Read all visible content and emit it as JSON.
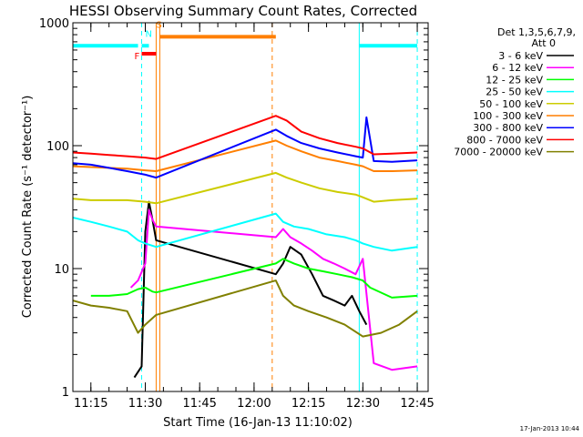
{
  "chart_data": {
    "type": "line",
    "title": "HESSI Observing Summary Count Rates, Corrected",
    "xlabel": "Start Time (16-Jan-13 11:10:02)",
    "ylabel": "Corrected Count Rate (s⁻¹ detector⁻¹)",
    "y_scale": "log",
    "ylim": [
      1,
      1000
    ],
    "xlim": [
      "11:10:02",
      "12:48:00"
    ],
    "x_ticks": [
      "11:15",
      "11:30",
      "11:45",
      "12:00",
      "12:15",
      "12:30",
      "12:45"
    ],
    "y_ticks": [
      "1",
      "10",
      "100",
      "1000"
    ],
    "grid": false,
    "legend": {
      "placement": "right",
      "header": [
        "Det 1,3,5,6,7,9,",
        "Att 0"
      ],
      "entries": [
        "3 - 6 keV",
        "6 - 12 keV",
        "12 - 25 keV",
        "25 - 50 keV",
        "50 - 100 keV",
        "100 - 300 keV",
        "300 - 800 keV",
        "800 - 7000 keV",
        "7000 - 20000 keV"
      ]
    },
    "series": [
      {
        "name": "3 - 6 keV",
        "color": "#000000",
        "x": [
          "11:27",
          "11:29",
          "11:30",
          "11:31",
          "11:32",
          "11:33",
          "12:06",
          "12:08",
          "12:10",
          "12:13",
          "12:16",
          "12:19",
          "12:22",
          "12:25",
          "12:27",
          "12:29",
          "12:31"
        ],
        "y": [
          1.3,
          1.6,
          20,
          35,
          25,
          17,
          9,
          11,
          15,
          13,
          9,
          6,
          5.5,
          5,
          6,
          4.5,
          3.5
        ]
      },
      {
        "name": "6 - 12 keV",
        "color": "#ff00ff",
        "x": [
          "11:26",
          "11:28",
          "11:30",
          "11:31",
          "11:32",
          "11:33",
          "12:06",
          "12:08",
          "12:10",
          "12:13",
          "12:16",
          "12:19",
          "12:22",
          "12:25",
          "12:28",
          "12:30",
          "12:33",
          "12:38",
          "12:45"
        ],
        "y": [
          7,
          8,
          11,
          30,
          25,
          22,
          18,
          21,
          18,
          16,
          14,
          12,
          11,
          10,
          9,
          12,
          1.7,
          1.5,
          1.6
        ]
      },
      {
        "name": "12 - 25 keV",
        "color": "#00ff00",
        "x": [
          "11:15",
          "11:20",
          "11:25",
          "11:28",
          "11:30",
          "11:32",
          "11:33",
          "12:06",
          "12:08",
          "12:11",
          "12:15",
          "12:19",
          "12:23",
          "12:27",
          "12:30",
          "12:32",
          "12:38",
          "12:45"
        ],
        "y": [
          6,
          6,
          6.2,
          6.8,
          7,
          6.5,
          6.4,
          11,
          12,
          11,
          10,
          9.5,
          9,
          8.5,
          8,
          7,
          5.8,
          6
        ]
      },
      {
        "name": "25 - 50 keV",
        "color": "#00ffff",
        "x": [
          "11:10",
          "11:15",
          "11:20",
          "11:25",
          "11:28",
          "11:30",
          "11:33",
          "12:06",
          "12:08",
          "12:11",
          "12:15",
          "12:20",
          "12:25",
          "12:28",
          "12:30",
          "12:33",
          "12:38",
          "12:45"
        ],
        "y": [
          26,
          24,
          22,
          20,
          17,
          16,
          15,
          28,
          24,
          22,
          21,
          19,
          18,
          17,
          16,
          15,
          14,
          15
        ]
      },
      {
        "name": "50 - 100 keV",
        "color": "#cccc00",
        "x": [
          "11:10",
          "11:15",
          "11:20",
          "11:25",
          "11:30",
          "11:33",
          "12:06",
          "12:09",
          "12:13",
          "12:18",
          "12:23",
          "12:28",
          "12:30",
          "12:33",
          "12:38",
          "12:45"
        ],
        "y": [
          37,
          36,
          36,
          36,
          35,
          34,
          60,
          55,
          50,
          45,
          42,
          40,
          38,
          35,
          36,
          37
        ]
      },
      {
        "name": "100 - 300 keV",
        "color": "#ff7f00",
        "x": [
          "11:10",
          "11:15",
          "11:20",
          "11:25",
          "11:30",
          "11:33",
          "12:06",
          "12:09",
          "12:13",
          "12:18",
          "12:23",
          "12:28",
          "12:30",
          "12:33",
          "12:38",
          "12:45"
        ],
        "y": [
          68,
          67,
          66,
          65,
          63,
          62,
          110,
          100,
          90,
          80,
          75,
          70,
          68,
          62,
          62,
          63
        ]
      },
      {
        "name": "300 - 800 keV",
        "color": "#0000ff",
        "x": [
          "11:10",
          "11:15",
          "11:20",
          "11:25",
          "11:30",
          "11:33",
          "12:06",
          "12:09",
          "12:13",
          "12:18",
          "12:23",
          "12:28",
          "12:30",
          "12:31",
          "12:33",
          "12:38",
          "12:45"
        ],
        "y": [
          72,
          70,
          66,
          62,
          58,
          55,
          135,
          120,
          105,
          95,
          88,
          82,
          80,
          170,
          75,
          74,
          76
        ]
      },
      {
        "name": "800 - 7000 keV",
        "color": "#ff0000",
        "x": [
          "11:10",
          "11:15",
          "11:20",
          "11:25",
          "11:30",
          "11:33",
          "12:06",
          "12:09",
          "12:13",
          "12:18",
          "12:23",
          "12:28",
          "12:30",
          "12:33",
          "12:38",
          "12:45"
        ],
        "y": [
          88,
          86,
          84,
          82,
          80,
          78,
          175,
          160,
          130,
          115,
          105,
          98,
          95,
          85,
          86,
          88
        ]
      },
      {
        "name": "7000 - 20000 keV",
        "color": "#808000",
        "x": [
          "11:10",
          "11:15",
          "11:20",
          "11:25",
          "11:28",
          "11:30",
          "11:33",
          "12:06",
          "12:08",
          "12:11",
          "12:15",
          "12:20",
          "12:25",
          "12:30",
          "12:35",
          "12:40",
          "12:45"
        ],
        "y": [
          5.5,
          5,
          4.8,
          4.5,
          3,
          3.5,
          4.2,
          8,
          6,
          5,
          4.5,
          4,
          3.5,
          2.8,
          3,
          3.5,
          4.5
        ]
      }
    ],
    "annotations": [
      {
        "type": "segment",
        "label": "",
        "color": "#00ffff",
        "x": [
          "11:10",
          "11:28"
        ],
        "y": 650
      },
      {
        "type": "segment",
        "label": "F",
        "color": "#ff0000",
        "x": [
          "11:29",
          "11:33"
        ],
        "y": 560
      },
      {
        "type": "segment",
        "label": "N",
        "color": "#00ffff",
        "x": [
          "11:29",
          "11:31"
        ],
        "y": 650
      },
      {
        "type": "segment",
        "label": "S",
        "color": "#ff7f00",
        "x": [
          "11:34",
          "12:06"
        ],
        "y": 770
      },
      {
        "type": "segment",
        "label": "",
        "color": "#00ffff",
        "x": [
          "12:29",
          "12:45"
        ],
        "y": 650
      }
    ],
    "vertical_markers": [
      {
        "x": "11:29",
        "color": "#00ffff",
        "style": "dashed"
      },
      {
        "x": "11:33",
        "color": "#ff7f00",
        "style": "solid"
      },
      {
        "x": "11:34",
        "color": "#ff7f00",
        "style": "solid"
      },
      {
        "x": "12:05",
        "color": "#ff7f00",
        "style": "dashed"
      },
      {
        "x": "12:29",
        "color": "#00ffff",
        "style": "solid"
      },
      {
        "x": "12:45",
        "color": "#00ffff",
        "style": "dashed"
      }
    ]
  },
  "footer_timestamp": "17-Jan-2013 10:44"
}
